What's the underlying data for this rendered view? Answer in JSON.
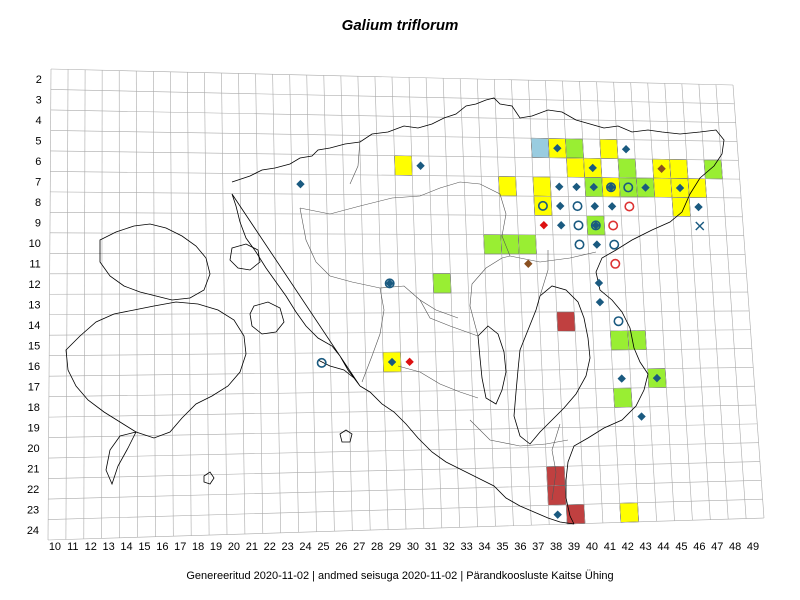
{
  "title": "Galium triflorum",
  "footer": "Genereeritud 2020-11-02  |  andmed seisuga 2020-11-02  |  Pärandkoosluste Kaitse Ühing",
  "grid": {
    "rows": [
      "2",
      "3",
      "4",
      "5",
      "6",
      "7",
      "8",
      "9",
      "10",
      "11",
      "12",
      "13",
      "14",
      "15",
      "16",
      "17",
      "18",
      "19",
      "20",
      "21",
      "22",
      "23",
      "24"
    ],
    "cols": [
      "10",
      "11",
      "12",
      "13",
      "14",
      "15",
      "16",
      "17",
      "18",
      "19",
      "20",
      "21",
      "22",
      "23",
      "24",
      "25",
      "26",
      "27",
      "28",
      "29",
      "30",
      "31",
      "32",
      "33",
      "34",
      "35",
      "36",
      "37",
      "38",
      "39",
      "40",
      "41",
      "42",
      "43",
      "44",
      "45",
      "46",
      "47",
      "48",
      "49"
    ]
  },
  "colors": {
    "yellow": "#ffff00",
    "green": "#99ee33",
    "blue": "#99cce0",
    "red": "#c04040",
    "diamond": "#1a5a80",
    "diamond_red": "#dd1111",
    "diamond_brown": "#8a5020",
    "circle_blue": "#1a5a80",
    "circle_red": "#dd3333"
  },
  "cells": [
    {
      "col": "38",
      "row": "5",
      "fill": "blue"
    },
    {
      "col": "39",
      "row": "5",
      "fill": "yellow"
    },
    {
      "col": "40",
      "row": "5",
      "fill": "green"
    },
    {
      "col": "42",
      "row": "5",
      "fill": "yellow"
    },
    {
      "col": "30",
      "row": "6",
      "fill": "yellow"
    },
    {
      "col": "40",
      "row": "6",
      "fill": "yellow"
    },
    {
      "col": "41",
      "row": "6",
      "fill": "yellow"
    },
    {
      "col": "43",
      "row": "6",
      "fill": "green"
    },
    {
      "col": "45",
      "row": "6",
      "fill": "yellow"
    },
    {
      "col": "46",
      "row": "6",
      "fill": "yellow"
    },
    {
      "col": "48",
      "row": "6",
      "fill": "green"
    },
    {
      "col": "36",
      "row": "7",
      "fill": "yellow"
    },
    {
      "col": "38",
      "row": "7",
      "fill": "yellow"
    },
    {
      "col": "41",
      "row": "7",
      "fill": "green"
    },
    {
      "col": "42",
      "row": "7",
      "fill": "yellow"
    },
    {
      "col": "43",
      "row": "7",
      "fill": "green"
    },
    {
      "col": "44",
      "row": "7",
      "fill": "green"
    },
    {
      "col": "45",
      "row": "7",
      "fill": "yellow"
    },
    {
      "col": "46",
      "row": "7",
      "fill": "yellow"
    },
    {
      "col": "47",
      "row": "7",
      "fill": "yellow"
    },
    {
      "col": "38",
      "row": "8",
      "fill": "yellow"
    },
    {
      "col": "46",
      "row": "8",
      "fill": "yellow"
    },
    {
      "col": "41",
      "row": "9",
      "fill": "green"
    },
    {
      "col": "35",
      "row": "10",
      "fill": "green"
    },
    {
      "col": "36",
      "row": "10",
      "fill": "green"
    },
    {
      "col": "37",
      "row": "10",
      "fill": "green"
    },
    {
      "col": "32",
      "row": "12",
      "fill": "green"
    },
    {
      "col": "39",
      "row": "14",
      "fill": "red"
    },
    {
      "col": "42",
      "row": "15",
      "fill": "green"
    },
    {
      "col": "43",
      "row": "15",
      "fill": "green"
    },
    {
      "col": "29",
      "row": "16",
      "fill": "yellow"
    },
    {
      "col": "44",
      "row": "17",
      "fill": "green"
    },
    {
      "col": "42",
      "row": "18",
      "fill": "green"
    },
    {
      "col": "38",
      "row": "22",
      "fill": "red"
    },
    {
      "col": "38",
      "row": "23",
      "fill": "red"
    },
    {
      "col": "39",
      "row": "24",
      "fill": "red"
    },
    {
      "col": "42",
      "row": "24",
      "fill": "yellow"
    }
  ],
  "markers": [
    {
      "col": "39",
      "row": "5",
      "type": "diamond",
      "color": "diamond"
    },
    {
      "col": "43",
      "row": "5",
      "type": "diamond",
      "color": "diamond"
    },
    {
      "col": "41",
      "row": "6",
      "type": "diamond",
      "color": "diamond"
    },
    {
      "col": "31",
      "row": "6",
      "type": "diamond",
      "color": "diamond"
    },
    {
      "col": "45",
      "row": "6",
      "type": "diamond",
      "color": "diamond_brown"
    },
    {
      "col": "24",
      "row": "7",
      "type": "diamond",
      "color": "diamond"
    },
    {
      "col": "39",
      "row": "7",
      "type": "diamond",
      "color": "diamond"
    },
    {
      "col": "40",
      "row": "7",
      "type": "diamond",
      "color": "diamond"
    },
    {
      "col": "41",
      "row": "7",
      "type": "diamond",
      "color": "diamond"
    },
    {
      "col": "42",
      "row": "7",
      "type": "circle",
      "color": "circle_blue"
    },
    {
      "col": "42",
      "row": "7",
      "type": "diamond",
      "color": "diamond"
    },
    {
      "col": "43",
      "row": "7",
      "type": "circle",
      "color": "circle_blue"
    },
    {
      "col": "44",
      "row": "7",
      "type": "diamond",
      "color": "diamond"
    },
    {
      "col": "46",
      "row": "7",
      "type": "diamond",
      "color": "diamond"
    },
    {
      "col": "38",
      "row": "8",
      "type": "circle",
      "color": "circle_blue"
    },
    {
      "col": "39",
      "row": "8",
      "type": "diamond",
      "color": "diamond"
    },
    {
      "col": "40",
      "row": "8",
      "type": "circle",
      "color": "circle_blue"
    },
    {
      "col": "41",
      "row": "8",
      "type": "diamond",
      "color": "diamond"
    },
    {
      "col": "42",
      "row": "8",
      "type": "diamond",
      "color": "diamond"
    },
    {
      "col": "43",
      "row": "8",
      "type": "circle",
      "color": "circle_red"
    },
    {
      "col": "47",
      "row": "8",
      "type": "diamond",
      "color": "diamond"
    },
    {
      "col": "38",
      "row": "9",
      "type": "diamond",
      "color": "diamond_red"
    },
    {
      "col": "39",
      "row": "9",
      "type": "diamond",
      "color": "diamond"
    },
    {
      "col": "40",
      "row": "9",
      "type": "circle",
      "color": "circle_blue"
    },
    {
      "col": "41",
      "row": "9",
      "type": "circle",
      "color": "circle_blue"
    },
    {
      "col": "41",
      "row": "9",
      "type": "diamond",
      "color": "diamond"
    },
    {
      "col": "42",
      "row": "9",
      "type": "circle",
      "color": "circle_red"
    },
    {
      "col": "47",
      "row": "9",
      "type": "cross",
      "color": "diamond"
    },
    {
      "col": "40",
      "row": "10",
      "type": "circle",
      "color": "circle_blue"
    },
    {
      "col": "41",
      "row": "10",
      "type": "diamond",
      "color": "diamond"
    },
    {
      "col": "42",
      "row": "10",
      "type": "circle",
      "color": "circle_blue"
    },
    {
      "col": "37",
      "row": "11",
      "type": "diamond",
      "color": "diamond_brown"
    },
    {
      "col": "42",
      "row": "11",
      "type": "circle",
      "color": "circle_red"
    },
    {
      "col": "29",
      "row": "12",
      "type": "circle",
      "color": "circle_blue"
    },
    {
      "col": "29",
      "row": "12",
      "type": "diamond",
      "color": "diamond"
    },
    {
      "col": "41",
      "row": "12",
      "type": "diamond",
      "color": "diamond"
    },
    {
      "col": "41",
      "row": "13",
      "type": "diamond",
      "color": "diamond"
    },
    {
      "col": "42",
      "row": "14",
      "type": "circle",
      "color": "circle_blue"
    },
    {
      "col": "25",
      "row": "16",
      "type": "circle",
      "color": "circle_blue"
    },
    {
      "col": "29",
      "row": "16",
      "type": "diamond",
      "color": "diamond"
    },
    {
      "col": "30",
      "row": "16",
      "type": "diamond",
      "color": "diamond_red"
    },
    {
      "col": "42",
      "row": "17",
      "type": "diamond",
      "color": "diamond"
    },
    {
      "col": "44",
      "row": "17",
      "type": "diamond",
      "color": "diamond"
    },
    {
      "col": "43",
      "row": "19",
      "type": "diamond",
      "color": "diamond"
    },
    {
      "col": "38",
      "row": "24",
      "type": "diamond",
      "color": "diamond"
    }
  ]
}
